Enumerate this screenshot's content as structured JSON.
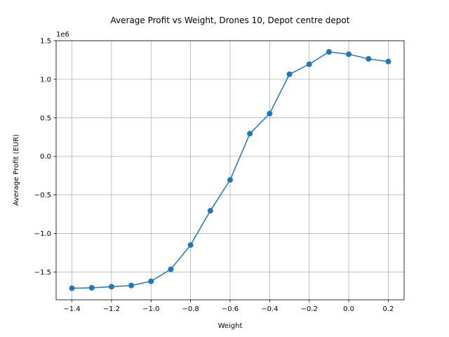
{
  "chart_data": {
    "type": "line",
    "title": "Average Profit vs Weight, Drones 10, Depot centre depot",
    "xlabel": "Weight",
    "ylabel": "Average Profit (EUR)",
    "y_offset_label": "1e6",
    "xlim": [
      -1.48,
      0.28
    ],
    "ylim": [
      -1.86,
      1.5
    ],
    "x_ticks": [
      -1.4,
      -1.2,
      -1.0,
      -0.8,
      -0.6,
      -0.4,
      -0.2,
      0.0,
      0.2
    ],
    "x_tick_labels": [
      "−1.4",
      "−1.2",
      "−1.0",
      "−0.8",
      "−0.6",
      "−0.4",
      "−0.2",
      "0.0",
      "0.2"
    ],
    "y_ticks": [
      -1.5,
      -1.0,
      -0.5,
      0.0,
      0.5,
      1.0,
      1.5
    ],
    "y_tick_labels": [
      "−1.5",
      "−1.0",
      "−0.5",
      "0.0",
      "0.5",
      "1.0",
      "1.5"
    ],
    "grid": true,
    "series": [
      {
        "color": "#1f77b4",
        "x": [
          -1.4,
          -1.3,
          -1.2,
          -1.1,
          -1.0,
          -0.9,
          -0.8,
          -0.7,
          -0.6,
          -0.5,
          -0.4,
          -0.3,
          -0.2,
          -0.1,
          0.0,
          0.1,
          0.2
        ],
        "y": [
          -1.71,
          -1.705,
          -1.69,
          -1.675,
          -1.62,
          -1.465,
          -1.15,
          -0.705,
          -0.305,
          0.295,
          0.555,
          1.065,
          1.195,
          1.355,
          1.325,
          1.265,
          1.23
        ]
      }
    ]
  }
}
